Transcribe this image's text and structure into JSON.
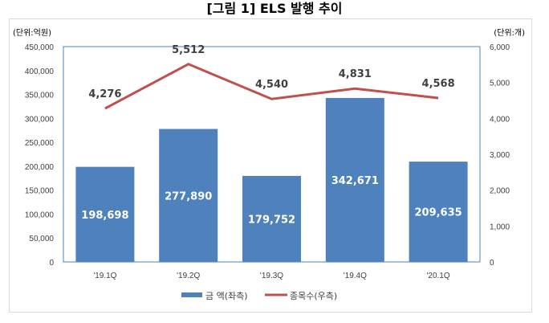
{
  "title": "[그림 1] ELS 발행 추이",
  "chart_data": {
    "type": "bar+line",
    "title": "[그림 1] ELS 발행 추이",
    "left_unit": "(단위:억원)",
    "right_unit": "(단위:개)",
    "categories": [
      "'19.1Q",
      "'19.2Q",
      "'19.3Q",
      "'19.4Q",
      "'20.1Q"
    ],
    "left_ylim": [
      0,
      450000
    ],
    "left_ticks": [
      "0",
      "50,000",
      "100,000",
      "150,000",
      "200,000",
      "250,000",
      "300,000",
      "350,000",
      "400,000",
      "450,000"
    ],
    "right_ylim": [
      0,
      6000
    ],
    "right_ticks": [
      "0",
      "1,000",
      "2,000",
      "3,000",
      "4,000",
      "5,000",
      "6,000"
    ],
    "series": [
      {
        "name": "금 액(좌측)",
        "type": "bar",
        "axis": "left",
        "color": "#4f81bd",
        "values": [
          198698,
          277890,
          179752,
          342671,
          209635
        ],
        "labels": [
          "198,698",
          "277,890",
          "179,752",
          "342,671",
          "209,635"
        ]
      },
      {
        "name": "종목수(우측)",
        "type": "line",
        "axis": "right",
        "color": "#c0504d",
        "values": [
          4276,
          5512,
          4540,
          4831,
          4568
        ],
        "labels": [
          "4,276",
          "5,512",
          "4,540",
          "4,831",
          "4,568"
        ]
      }
    ],
    "legend": "bottom",
    "grid": false
  }
}
